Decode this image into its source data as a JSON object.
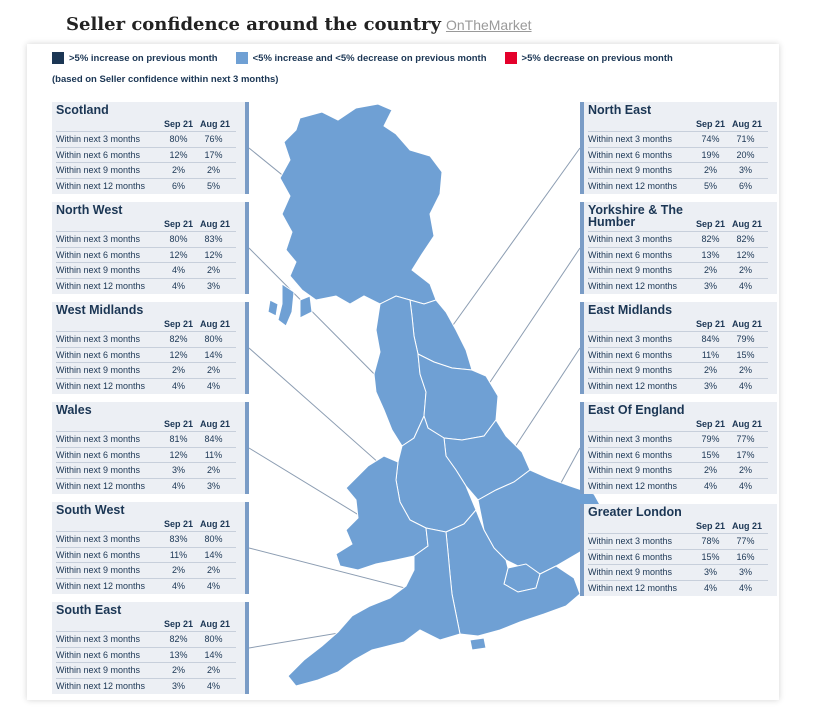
{
  "header": {
    "title": "Seller confidence around the country",
    "source": "OnTheMarket"
  },
  "legend": [
    {
      "label": ">5% increase on previous month",
      "color": "#1b3654"
    },
    {
      "label": "<5% increase and <5% decrease on previous month",
      "color": "#6fa0d4"
    },
    {
      "label": ">5% decrease on previous month",
      "color": "#e4002b"
    }
  ],
  "note": "(based on Seller confidence within next 3 months)",
  "columns": {
    "current": "Sep 21",
    "previous": "Aug 21"
  },
  "regions": [
    {
      "name": "Scotland",
      "side": "left",
      "rows": [
        [
          "Within next 3 months",
          "80%",
          "76%"
        ],
        [
          "Within next 6 months",
          "12%",
          "17%"
        ],
        [
          "Within next 9 months",
          "2%",
          "2%"
        ],
        [
          "Within next 12 months",
          "6%",
          "5%"
        ]
      ]
    },
    {
      "name": "North West",
      "side": "left",
      "rows": [
        [
          "Within next 3 months",
          "80%",
          "83%"
        ],
        [
          "Within next 6 months",
          "12%",
          "12%"
        ],
        [
          "Within next 9 months",
          "4%",
          "2%"
        ],
        [
          "Within next 12 months",
          "4%",
          "3%"
        ]
      ]
    },
    {
      "name": "West Midlands",
      "side": "left",
      "rows": [
        [
          "Within next 3 months",
          "82%",
          "80%"
        ],
        [
          "Within next 6 months",
          "12%",
          "14%"
        ],
        [
          "Within next 9 months",
          "2%",
          "2%"
        ],
        [
          "Within next 12 months",
          "4%",
          "4%"
        ]
      ]
    },
    {
      "name": "Wales",
      "side": "left",
      "rows": [
        [
          "Within next 3 months",
          "81%",
          "84%"
        ],
        [
          "Within next 6 months",
          "12%",
          "11%"
        ],
        [
          "Within next 9 months",
          "3%",
          "2%"
        ],
        [
          "Within next 12 months",
          "4%",
          "3%"
        ]
      ]
    },
    {
      "name": "South West",
      "side": "left",
      "rows": [
        [
          "Within next 3 months",
          "83%",
          "80%"
        ],
        [
          "Within next 6 months",
          "11%",
          "14%"
        ],
        [
          "Within next 9 months",
          "2%",
          "2%"
        ],
        [
          "Within next 12 months",
          "4%",
          "4%"
        ]
      ]
    },
    {
      "name": "South East",
      "side": "left",
      "rows": [
        [
          "Within next 3 months",
          "82%",
          "80%"
        ],
        [
          "Within next 6 months",
          "13%",
          "14%"
        ],
        [
          "Within next 9 months",
          "2%",
          "2%"
        ],
        [
          "Within next 12 months",
          "3%",
          "4%"
        ]
      ]
    },
    {
      "name": "North East",
      "side": "right",
      "rows": [
        [
          "Within next 3 months",
          "74%",
          "71%"
        ],
        [
          "Within next 6 months",
          "19%",
          "20%"
        ],
        [
          "Within next 9 months",
          "2%",
          "3%"
        ],
        [
          "Within next 12 months",
          "5%",
          "6%"
        ]
      ]
    },
    {
      "name": "Yorkshire & The Humber",
      "side": "right",
      "rows": [
        [
          "Within next 3 months",
          "82%",
          "82%"
        ],
        [
          "Within next 6 months",
          "13%",
          "12%"
        ],
        [
          "Within next 9 months",
          "2%",
          "2%"
        ],
        [
          "Within next 12 months",
          "3%",
          "4%"
        ]
      ]
    },
    {
      "name": "East Midlands",
      "side": "right",
      "rows": [
        [
          "Within next 3 months",
          "84%",
          "79%"
        ],
        [
          "Within next 6 months",
          "11%",
          "15%"
        ],
        [
          "Within next 9 months",
          "2%",
          "2%"
        ],
        [
          "Within next 12 months",
          "3%",
          "4%"
        ]
      ]
    },
    {
      "name": "East Of England",
      "side": "right",
      "rows": [
        [
          "Within next 3 months",
          "79%",
          "77%"
        ],
        [
          "Within next 6 months",
          "15%",
          "17%"
        ],
        [
          "Within next 9 months",
          "2%",
          "2%"
        ],
        [
          "Within next 12 months",
          "4%",
          "4%"
        ]
      ]
    },
    {
      "name": "Greater London",
      "side": "right",
      "rows": [
        [
          "Within next 3 months",
          "78%",
          "77%"
        ],
        [
          "Within next 6 months",
          "15%",
          "16%"
        ],
        [
          "Within next 9 months",
          "3%",
          "3%"
        ],
        [
          "Within next 12 months",
          "4%",
          "4%"
        ]
      ]
    }
  ],
  "map": {
    "fill": "#6fa0d4",
    "border": "#ffffff",
    "leader": "#8c9db2"
  }
}
